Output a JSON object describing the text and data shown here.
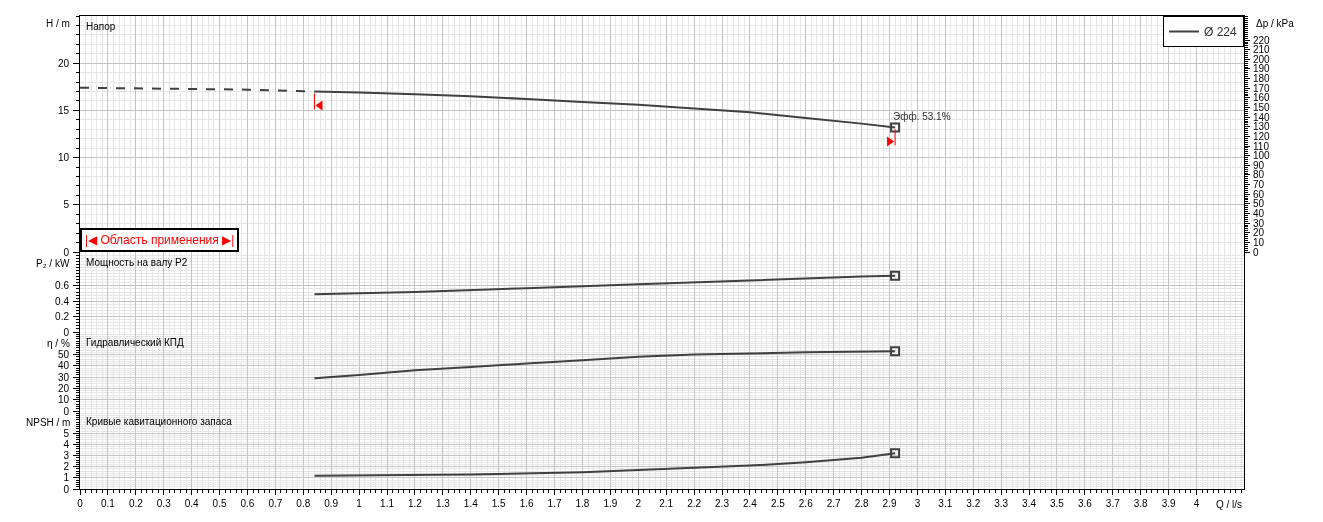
{
  "chart_data": [
    {
      "type": "line",
      "title": "Напор",
      "ylabel": "H / m",
      "y2label": "Δp / kPa",
      "xlim": [
        0,
        4.17
      ],
      "ylim": [
        0,
        25
      ],
      "yticks": [
        0,
        5,
        10,
        15,
        20
      ],
      "y2lim": [
        0,
        245
      ],
      "y2ticks": [
        0,
        10,
        20,
        30,
        40,
        50,
        60,
        70,
        80,
        90,
        100,
        110,
        120,
        130,
        140,
        150,
        160,
        170,
        180,
        190,
        200,
        210,
        220
      ],
      "xticks": [
        0,
        0.1,
        0.2,
        0.3,
        0.4,
        0.5,
        0.6,
        0.7,
        0.8,
        0.9,
        1,
        1.1,
        1.2,
        1.3,
        1.4,
        1.5,
        1.6,
        1.7,
        1.8,
        1.9,
        2,
        2.1,
        2.2,
        2.3,
        2.4,
        2.5,
        2.6,
        2.7,
        2.8,
        2.9,
        3,
        3.1,
        3.2,
        3.3,
        3.4,
        3.5,
        3.6,
        3.7,
        3.8,
        3.9,
        4
      ],
      "tick_labels": "y",
      "grid": true,
      "legend": "top right",
      "series": [
        {
          "color": "#404040",
          "line_style": "dashed",
          "x": [
            0,
            0.3,
            0.6,
            0.84
          ],
          "values": [
            17.4,
            17.3,
            17.2,
            17.0
          ]
        },
        {
          "name": "Ø 224",
          "color": "#404040",
          "line_style": "solid",
          "x": [
            0.84,
            1.0,
            1.2,
            1.4,
            1.6,
            1.8,
            2.0,
            2.2,
            2.4,
            2.6,
            2.8,
            2.92
          ],
          "values": [
            17.0,
            16.9,
            16.7,
            16.5,
            16.2,
            15.9,
            15.6,
            15.2,
            14.8,
            14.2,
            13.6,
            13.2
          ]
        },
        {
          "type": "scatter",
          "color": "#404040",
          "marker": "square",
          "x": [
            2.92
          ],
          "values": [
            13.2
          ]
        }
      ],
      "annotations": [
        {
          "text": "Эфф. 53.1%",
          "x": 2.92,
          "y": 13.2
        },
        "|◀ Область применения ▶|"
      ]
    },
    {
      "type": "line",
      "title": "Мощность на валу P2",
      "ylabel": "P₂ / kW",
      "xlim": [
        0,
        4.17
      ],
      "ylim": [
        0,
        1.04
      ],
      "yticks": [
        0,
        0.2,
        0.4,
        0.6
      ],
      "xticks": [
        0,
        0.1,
        0.2,
        0.3,
        0.4,
        0.5,
        0.6,
        0.7,
        0.8,
        0.9,
        1,
        1.1,
        1.2,
        1.3,
        1.4,
        1.5,
        1.6,
        1.7,
        1.8,
        1.9,
        2,
        2.1,
        2.2,
        2.3,
        2.4,
        2.5,
        2.6,
        2.7,
        2.8,
        2.9,
        3,
        3.1,
        3.2,
        3.3,
        3.4,
        3.5,
        3.6,
        3.7,
        3.8,
        3.9,
        4
      ],
      "tick_labels": "y",
      "grid": true,
      "series": [
        {
          "color": "#404040",
          "line_style": "solid",
          "x": [
            0.84,
            1.2,
            1.6,
            2.0,
            2.4,
            2.8,
            2.92
          ],
          "values": [
            0.49,
            0.52,
            0.57,
            0.62,
            0.67,
            0.72,
            0.73
          ]
        },
        {
          "type": "scatter",
          "color": "#404040",
          "marker": "square",
          "x": [
            2.92
          ],
          "values": [
            0.73
          ]
        }
      ]
    },
    {
      "type": "line",
      "title": "Гидравлический КПД",
      "ylabel": "η / %",
      "xlim": [
        0,
        4.17
      ],
      "ylim": [
        0,
        70
      ],
      "yticks": [
        0,
        10,
        20,
        30,
        40,
        50
      ],
      "xticks": [
        0,
        0.1,
        0.2,
        0.3,
        0.4,
        0.5,
        0.6,
        0.7,
        0.8,
        0.9,
        1,
        1.1,
        1.2,
        1.3,
        1.4,
        1.5,
        1.6,
        1.7,
        1.8,
        1.9,
        2,
        2.1,
        2.2,
        2.3,
        2.4,
        2.5,
        2.6,
        2.7,
        2.8,
        2.9,
        3,
        3.1,
        3.2,
        3.3,
        3.4,
        3.5,
        3.6,
        3.7,
        3.8,
        3.9,
        4
      ],
      "tick_labels": "y",
      "grid": true,
      "series": [
        {
          "color": "#404040",
          "line_style": "solid",
          "x": [
            0.84,
            1.0,
            1.2,
            1.4,
            1.6,
            1.8,
            2.0,
            2.2,
            2.4,
            2.6,
            2.92
          ],
          "values": [
            29,
            32,
            36,
            39,
            42,
            45,
            48,
            50,
            51,
            52,
            53
          ]
        },
        {
          "type": "scatter",
          "color": "#404040",
          "marker": "square",
          "x": [
            2.92
          ],
          "values": [
            53
          ]
        }
      ]
    },
    {
      "type": "line",
      "title": "Кривые кавитационного запаса",
      "ylabel": "NPSH / m",
      "xlabel": "Q / l/s",
      "xlim": [
        0,
        4.17
      ],
      "ylim": [
        0,
        7
      ],
      "yticks": [
        0,
        1,
        2,
        3,
        4,
        5
      ],
      "xticks": [
        0,
        0.1,
        0.2,
        0.3,
        0.4,
        0.5,
        0.6,
        0.7,
        0.8,
        0.9,
        1,
        1.1,
        1.2,
        1.3,
        1.4,
        1.5,
        1.6,
        1.7,
        1.8,
        1.9,
        2,
        2.1,
        2.2,
        2.3,
        2.4,
        2.5,
        2.6,
        2.7,
        2.8,
        2.9,
        3,
        3.1,
        3.2,
        3.3,
        3.4,
        3.5,
        3.6,
        3.7,
        3.8,
        3.9,
        4
      ],
      "grid": true,
      "series": [
        {
          "color": "#404040",
          "line_style": "solid",
          "x": [
            0.84,
            1.4,
            1.8,
            2.0,
            2.2,
            2.4,
            2.6,
            2.8,
            2.92
          ],
          "values": [
            1.2,
            1.3,
            1.5,
            1.7,
            1.9,
            2.1,
            2.4,
            2.8,
            3.2
          ]
        },
        {
          "type": "scatter",
          "color": "#404040",
          "marker": "square",
          "x": [
            2.92
          ],
          "values": [
            3.2
          ]
        }
      ]
    }
  ]
}
